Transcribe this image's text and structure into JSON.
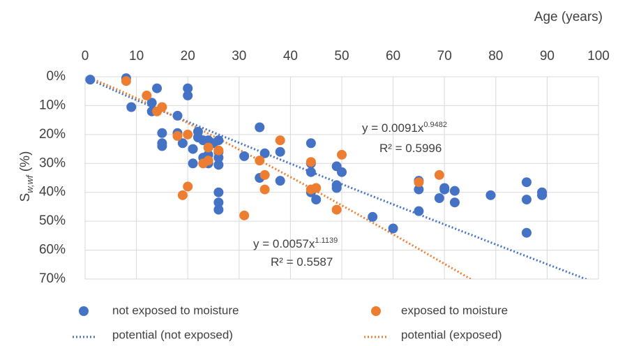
{
  "chart_data": {
    "type": "scatter",
    "xlabel": "Age (years)",
    "ylabel_main": "S",
    "ylabel_sub": "w,wf",
    "ylabel_unit": " (%)",
    "xlim": [
      0,
      100
    ],
    "ylim": [
      0,
      70
    ],
    "x_ticks": [
      0,
      10,
      20,
      30,
      40,
      50,
      60,
      70,
      80,
      90,
      100
    ],
    "y_ticks": [
      0,
      10,
      20,
      30,
      40,
      50,
      60,
      70
    ],
    "y_tick_labels": [
      "0%",
      "10%",
      "20%",
      "30%",
      "40%",
      "50%",
      "60%",
      "70%"
    ],
    "y_inverted": true,
    "grid": true,
    "legend_position": "bottom",
    "series": [
      {
        "name": "not exposed to moisture",
        "color": "#4472C4",
        "points": [
          [
            1,
            1
          ],
          [
            8,
            0.5
          ],
          [
            9,
            10.5
          ],
          [
            13,
            9
          ],
          [
            13,
            12
          ],
          [
            14,
            4
          ],
          [
            15,
            19.5
          ],
          [
            15,
            23
          ],
          [
            15,
            24
          ],
          [
            18,
            13.5
          ],
          [
            18,
            19.5
          ],
          [
            19,
            23
          ],
          [
            20,
            4
          ],
          [
            20,
            6.5
          ],
          [
            21,
            25
          ],
          [
            21,
            30
          ],
          [
            22,
            19
          ],
          [
            22,
            21
          ],
          [
            23,
            22
          ],
          [
            23,
            28
          ],
          [
            24,
            22
          ],
          [
            24,
            27
          ],
          [
            24,
            29
          ],
          [
            24,
            30
          ],
          [
            25,
            23
          ],
          [
            26,
            22
          ],
          [
            26,
            26
          ],
          [
            26,
            28
          ],
          [
            26,
            30.5
          ],
          [
            26,
            40
          ],
          [
            26,
            43.5
          ],
          [
            26,
            46
          ],
          [
            31,
            27.5
          ],
          [
            34,
            17.5
          ],
          [
            34,
            35
          ],
          [
            35,
            26.5
          ],
          [
            38,
            26
          ],
          [
            38,
            36
          ],
          [
            44,
            23
          ],
          [
            44,
            30
          ],
          [
            44,
            33
          ],
          [
            44,
            40
          ],
          [
            45,
            42.5
          ],
          [
            49,
            31
          ],
          [
            49,
            37.5
          ],
          [
            49,
            38.5
          ],
          [
            50,
            33
          ],
          [
            56,
            48.5
          ],
          [
            60,
            52.5
          ],
          [
            65,
            36
          ],
          [
            65,
            39
          ],
          [
            65,
            46.5
          ],
          [
            69,
            42
          ],
          [
            70,
            38.5
          ],
          [
            70,
            39
          ],
          [
            72,
            39.5
          ],
          [
            72,
            43.5
          ],
          [
            79,
            41
          ],
          [
            86,
            36.5
          ],
          [
            86,
            42.5
          ],
          [
            86,
            54
          ],
          [
            89,
            40
          ],
          [
            89,
            41
          ]
        ]
      },
      {
        "name": "exposed to moisture",
        "color": "#ED7D31",
        "points": [
          [
            8,
            1.5
          ],
          [
            12,
            6.5
          ],
          [
            14,
            12
          ],
          [
            15,
            10.5
          ],
          [
            18,
            20.5
          ],
          [
            19,
            41
          ],
          [
            20,
            20
          ],
          [
            20,
            38
          ],
          [
            23,
            30
          ],
          [
            24,
            24.5
          ],
          [
            24,
            29
          ],
          [
            26,
            25.5
          ],
          [
            31,
            48
          ],
          [
            34,
            29
          ],
          [
            35,
            34
          ],
          [
            35,
            39
          ],
          [
            38,
            22
          ],
          [
            44,
            29.5
          ],
          [
            44,
            39
          ],
          [
            45,
            38.5
          ],
          [
            49,
            46
          ],
          [
            50,
            27
          ],
          [
            65,
            36.5
          ],
          [
            69,
            34
          ]
        ]
      }
    ],
    "trendlines": [
      {
        "name": "potential (not exposed)",
        "color": "#4472C4",
        "coef": 0.0091,
        "exponent": 0.9482,
        "equation_prefix": "y = 0.0091x",
        "equation_exp": "0.9482",
        "r2_label": "R² = 0.5996"
      },
      {
        "name": "potential (exposed)",
        "color": "#ED7D31",
        "coef": 0.0057,
        "exponent": 1.1139,
        "equation_prefix": "y = 0.0057x",
        "equation_exp": "1.1139",
        "r2_label": "R² = 0.5587"
      }
    ]
  }
}
